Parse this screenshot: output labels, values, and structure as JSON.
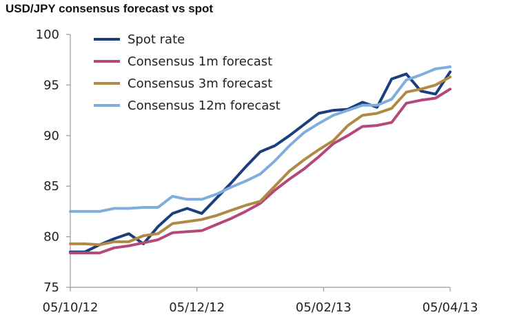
{
  "chart_data": {
    "type": "line",
    "title": "USD/JPY consensus forecast vs spot",
    "xlabel": "",
    "ylabel": "",
    "ylim": [
      75,
      100
    ],
    "yticks": [
      75,
      80,
      85,
      90,
      95,
      100
    ],
    "xticks": [
      "05/10/12",
      "05/12/12",
      "05/02/13",
      "05/04/13"
    ],
    "grid": false,
    "legend_position": "top-left",
    "series": [
      {
        "name": "Spot rate",
        "color": "#1b3f7e",
        "values": [
          78.5,
          78.5,
          79.2,
          79.8,
          80.3,
          79.3,
          81.0,
          82.3,
          82.8,
          82.3,
          83.8,
          85.3,
          86.9,
          88.4,
          89.0,
          90.0,
          91.1,
          92.2,
          92.5,
          92.6,
          93.3,
          92.8,
          95.6,
          96.1,
          94.4,
          94.1,
          96.3
        ]
      },
      {
        "name": "Consensus 1m forecast",
        "color": "#b5487a",
        "values": [
          78.4,
          78.4,
          78.4,
          78.9,
          79.1,
          79.4,
          79.7,
          80.4,
          80.5,
          80.6,
          81.2,
          81.8,
          82.5,
          83.3,
          84.6,
          85.7,
          86.7,
          87.9,
          89.2,
          90.0,
          90.9,
          91.0,
          91.3,
          93.2,
          93.5,
          93.7,
          94.6
        ]
      },
      {
        "name": "Consensus 3m forecast",
        "color": "#b08a44",
        "values": [
          79.3,
          79.3,
          79.2,
          79.5,
          79.5,
          80.1,
          80.3,
          81.3,
          81.5,
          81.7,
          82.1,
          82.6,
          83.1,
          83.5,
          85.0,
          86.5,
          87.6,
          88.6,
          89.5,
          91.0,
          92.0,
          92.2,
          92.7,
          94.3,
          94.6,
          95.0,
          95.8
        ]
      },
      {
        "name": "Consensus 12m forecast",
        "color": "#7faedc",
        "values": [
          82.5,
          82.5,
          82.5,
          82.8,
          82.8,
          82.9,
          82.9,
          84.0,
          83.7,
          83.7,
          84.2,
          84.9,
          85.5,
          86.2,
          87.5,
          89.0,
          90.3,
          91.2,
          92.0,
          92.5,
          93.0,
          93.0,
          93.6,
          95.5,
          96.0,
          96.6,
          96.8
        ]
      }
    ]
  }
}
